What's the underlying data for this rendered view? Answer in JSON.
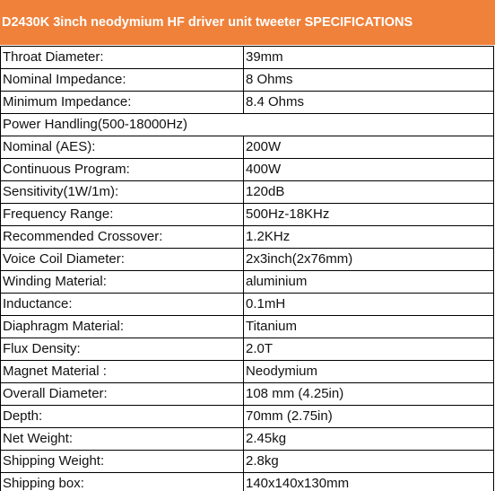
{
  "header": {
    "title": "D2430K 3inch neodymium HF driver unit tweeter SPECIFICATIONS"
  },
  "table": {
    "rows": [
      [
        "Throat Diameter:",
        "39mm"
      ],
      [
        "Nominal Impedance:",
        "8 Ohms"
      ],
      [
        "Minimum Impedance:",
        "8.4 Ohms"
      ],
      [
        "Power Handling(500-18000Hz)"
      ],
      [
        "Nominal (AES):",
        "200W"
      ],
      [
        "Continuous Program:",
        "400W"
      ],
      [
        "Sensitivity(1W/1m):",
        "120dB"
      ],
      [
        "Frequency Range:",
        "500Hz-18KHz"
      ],
      [
        "Recommended Crossover:",
        "1.2KHz"
      ],
      [
        "Voice Coil Diameter:",
        "2x3inch(2x76mm)"
      ],
      [
        "Winding Material:",
        "aluminium"
      ],
      [
        "Inductance:",
        "0.1mH"
      ],
      [
        "Diaphragm Material:",
        "Titanium"
      ],
      [
        "Flux Density:",
        "2.0T"
      ],
      [
        "Magnet Material :",
        "Neodymium"
      ],
      [
        "Overall Diameter:",
        "108 mm (4.25in)"
      ],
      [
        "Depth:",
        "70mm (2.75in)"
      ],
      [
        "Net Weight:",
        "2.45kg"
      ],
      [
        "Shipping Weight:",
        "2.8kg"
      ],
      [
        "Shipping box:",
        "140x140x130mm"
      ]
    ]
  }
}
